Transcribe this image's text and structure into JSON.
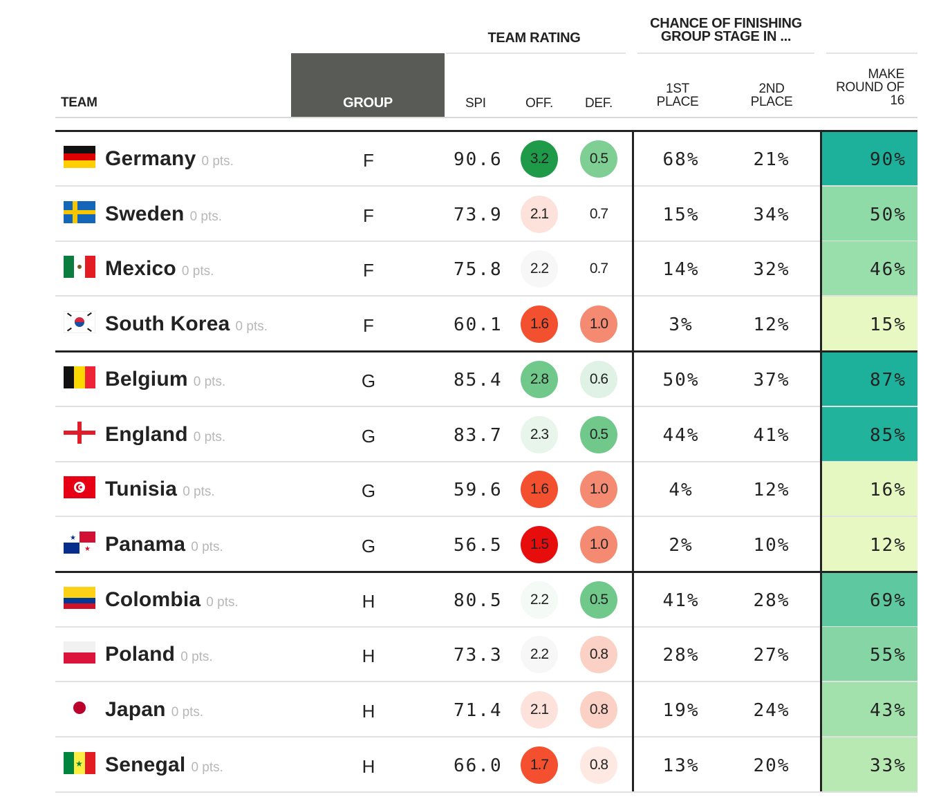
{
  "header": {
    "team_rating": "TEAM RATING",
    "chance_line1": "CHANCE OF FINISHING",
    "chance_line2": "GROUP STAGE IN ...",
    "team": "TEAM",
    "group": "GROUP",
    "spi": "SPI",
    "off": "OFF.",
    "def": "DEF.",
    "first_1": "1ST",
    "first_2": "PLACE",
    "second_1": "2ND",
    "second_2": "PLACE",
    "make_1": "MAKE",
    "make_2": "ROUND OF",
    "make_3": "16"
  },
  "colors": {
    "group_header_bg": "#585b56",
    "rule": "#222222",
    "off_def_scale": [
      "#1f9a48",
      "#70c98b",
      "#a9deb7",
      "#dff2e5",
      "#f7f7f7",
      "#fde2dc",
      "#f9b5a6",
      "#f58a72",
      "#f2502f",
      "#e80d0d"
    ],
    "r16_scale": [
      "#1db19b",
      "#2fbc9c",
      "#5ec9a0",
      "#86d6a5",
      "#a9e2ae",
      "#cbefb7",
      "#e8f8c3"
    ]
  },
  "teams": [
    {
      "flag": "germany-flag",
      "name": "Germany",
      "pts": "0 pts.",
      "group": "F",
      "spi": "90.6",
      "off": "3.2",
      "off_color": "#1f9a48",
      "off_text": "#222222",
      "def": "0.5",
      "def_color": "#7fcf95",
      "def_text": "#222222",
      "first": "68%",
      "second": "21%",
      "r16": "90%",
      "r16_color": "#1db19b"
    },
    {
      "flag": "sweden-flag",
      "name": "Sweden",
      "pts": "0 pts.",
      "group": "F",
      "spi": "73.9",
      "off": "2.1",
      "off_color": "#fde2dc",
      "off_text": "#222222",
      "def": "0.7",
      "def_color": "#ffffff",
      "def_text": "#222222",
      "first": "15%",
      "second": "34%",
      "r16": "50%",
      "r16_color": "#8fdba8"
    },
    {
      "flag": "mexico-flag",
      "name": "Mexico",
      "pts": "0 pts.",
      "group": "F",
      "spi": "75.8",
      "off": "2.2",
      "off_color": "#f7f7f7",
      "off_text": "#222222",
      "def": "0.7",
      "def_color": "#ffffff",
      "def_text": "#222222",
      "first": "14%",
      "second": "32%",
      "r16": "46%",
      "r16_color": "#99dfac"
    },
    {
      "flag": "south-korea-flag",
      "name": "South Korea",
      "pts": "0 pts.",
      "group": "F",
      "spi": "60.1",
      "off": "1.6",
      "off_color": "#f2502f",
      "off_text": "#222222",
      "def": "1.0",
      "def_color": "#f58a72",
      "def_text": "#222222",
      "first": "3%",
      "second": "12%",
      "r16": "15%",
      "r16_color": "#e8f8c3"
    },
    {
      "flag": "belgium-flag",
      "name": "Belgium",
      "pts": "0 pts.",
      "group": "G",
      "spi": "85.4",
      "off": "2.8",
      "off_color": "#70c98b",
      "off_text": "#222222",
      "def": "0.6",
      "def_color": "#dff2e5",
      "def_text": "#222222",
      "first": "50%",
      "second": "37%",
      "r16": "87%",
      "r16_color": "#1db19b"
    },
    {
      "flag": "england-flag",
      "name": "England",
      "pts": "0 pts.",
      "group": "G",
      "spi": "83.7",
      "off": "2.3",
      "off_color": "#e7f5ea",
      "off_text": "#222222",
      "def": "0.5",
      "def_color": "#70c98b",
      "def_text": "#222222",
      "first": "44%",
      "second": "41%",
      "r16": "85%",
      "r16_color": "#21b39b"
    },
    {
      "flag": "tunisia-flag",
      "name": "Tunisia",
      "pts": "0 pts.",
      "group": "G",
      "spi": "59.6",
      "off": "1.6",
      "off_color": "#f2502f",
      "off_text": "#222222",
      "def": "1.0",
      "def_color": "#f58a72",
      "def_text": "#222222",
      "first": "4%",
      "second": "12%",
      "r16": "16%",
      "r16_color": "#e6f8c2"
    },
    {
      "flag": "panama-flag",
      "name": "Panama",
      "pts": "0 pts.",
      "group": "G",
      "spi": "56.5",
      "off": "1.5",
      "off_color": "#e80d0d",
      "off_text": "#222222",
      "def": "1.0",
      "def_color": "#f58a72",
      "def_text": "#222222",
      "first": "2%",
      "second": "10%",
      "r16": "12%",
      "r16_color": "#e8f8c3"
    },
    {
      "flag": "colombia-flag",
      "name": "Colombia",
      "pts": "0 pts.",
      "group": "H",
      "spi": "80.5",
      "off": "2.2",
      "off_color": "#f4faf5",
      "off_text": "#222222",
      "def": "0.5",
      "def_color": "#70c98b",
      "def_text": "#222222",
      "first": "41%",
      "second": "28%",
      "r16": "69%",
      "r16_color": "#5ec9a0"
    },
    {
      "flag": "poland-flag",
      "name": "Poland",
      "pts": "0 pts.",
      "group": "H",
      "spi": "73.3",
      "off": "2.2",
      "off_color": "#f7f7f7",
      "off_text": "#222222",
      "def": "0.8",
      "def_color": "#fbd0c5",
      "def_text": "#222222",
      "first": "28%",
      "second": "27%",
      "r16": "55%",
      "r16_color": "#86d6a5"
    },
    {
      "flag": "japan-flag",
      "name": "Japan",
      "pts": "0 pts.",
      "group": "H",
      "spi": "71.4",
      "off": "2.1",
      "off_color": "#fde2dc",
      "off_text": "#222222",
      "def": "0.8",
      "def_color": "#fbd0c5",
      "def_text": "#222222",
      "first": "19%",
      "second": "24%",
      "r16": "43%",
      "r16_color": "#a3e1ac"
    },
    {
      "flag": "senegal-flag",
      "name": "Senegal",
      "pts": "0 pts.",
      "group": "H",
      "spi": "66.0",
      "off": "1.7",
      "off_color": "#f4502f",
      "off_text": "#222222",
      "def": "0.8",
      "def_color": "#fde8e2",
      "def_text": "#222222",
      "first": "13%",
      "second": "20%",
      "r16": "33%",
      "r16_color": "#b8e9b2"
    }
  ]
}
